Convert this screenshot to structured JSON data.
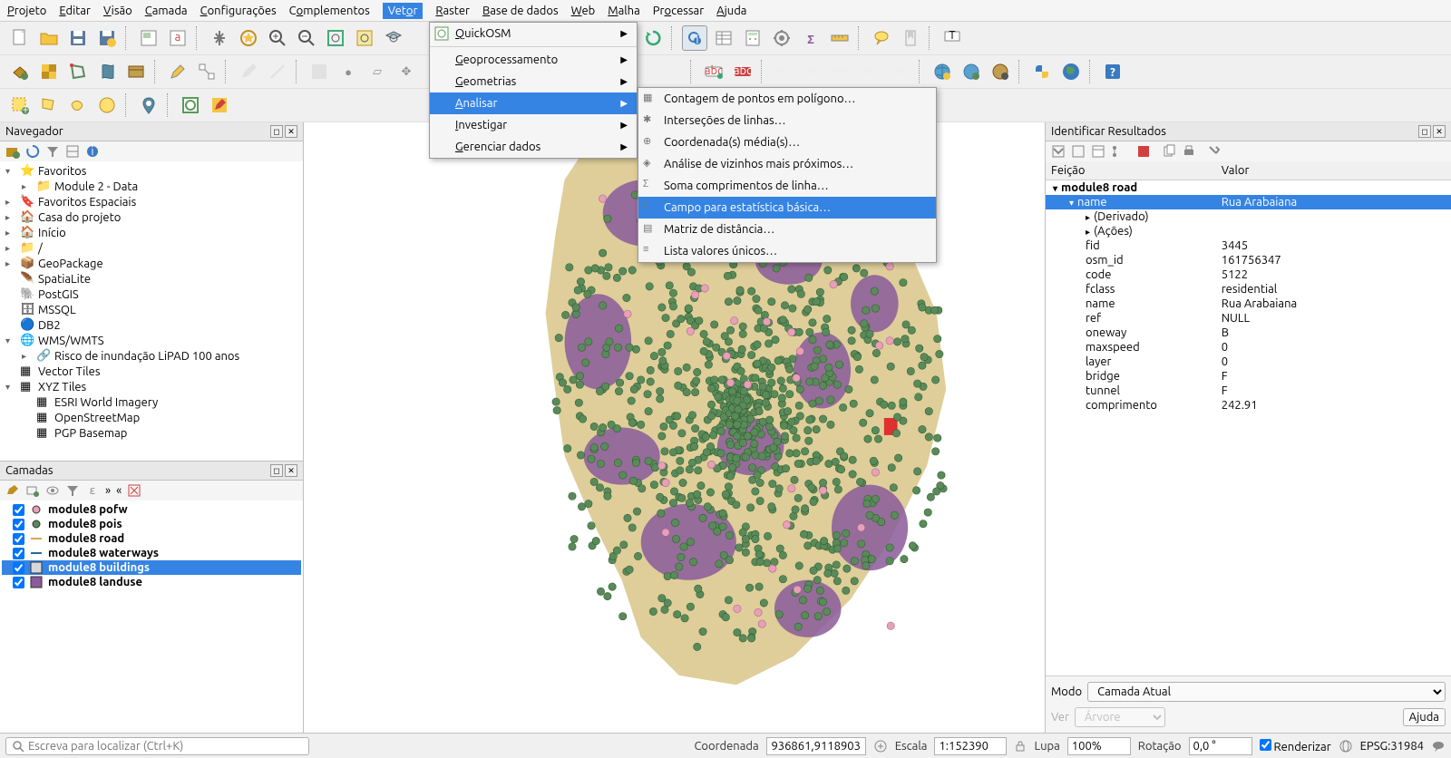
{
  "menubar": [
    "Projeto",
    "Editar",
    "Visão",
    "Camada",
    "Configurações",
    "Complementos",
    "Vetor",
    "Raster",
    "Base de dados",
    "Web",
    "Malha",
    "Processar",
    "Ajuda"
  ],
  "menubar_active_index": 6,
  "vetor_menu": {
    "items": [
      {
        "label": "QuickOSM",
        "arrow": true
      },
      {
        "label": "Geoprocessamento",
        "arrow": true
      },
      {
        "label": "Geometrias",
        "arrow": true
      },
      {
        "label": "Analisar",
        "arrow": true,
        "highlighted": true
      },
      {
        "label": "Investigar",
        "arrow": true
      },
      {
        "label": "Gerenciar dados",
        "arrow": true
      }
    ]
  },
  "analisar_submenu": {
    "items": [
      {
        "label": "Contagem de pontos em polígono…"
      },
      {
        "label": "Interseções de linhas…"
      },
      {
        "label": "Coordenada(s) média(s)…"
      },
      {
        "label": "Análise de vizinhos mais próximos…"
      },
      {
        "label": "Soma comprimentos de linha…"
      },
      {
        "label": "Campo para estatística básica…",
        "highlighted": true
      },
      {
        "label": "Matriz de distância…"
      },
      {
        "label": "Lista valores únicos…"
      }
    ]
  },
  "browser": {
    "title": "Navegador",
    "items": [
      {
        "label": "Favoritos",
        "indent": 0,
        "arrow": "▾",
        "icon": "star"
      },
      {
        "label": "Module 2 - Data",
        "indent": 1,
        "arrow": "▸",
        "icon": "folder"
      },
      {
        "label": "Favoritos Espaciais",
        "indent": 0,
        "arrow": "▸",
        "icon": "bookmark"
      },
      {
        "label": "Casa do projeto",
        "indent": 0,
        "arrow": "▸",
        "icon": "home"
      },
      {
        "label": "Início",
        "indent": 0,
        "arrow": "▸",
        "icon": "home2"
      },
      {
        "label": "/",
        "indent": 0,
        "arrow": "▸",
        "icon": "folder"
      },
      {
        "label": "GeoPackage",
        "indent": 0,
        "arrow": "▸",
        "icon": "gpkg"
      },
      {
        "label": "SpatiaLite",
        "indent": 0,
        "arrow": "",
        "icon": "feather"
      },
      {
        "label": "PostGIS",
        "indent": 0,
        "arrow": "",
        "icon": "pg"
      },
      {
        "label": "MSSQL",
        "indent": 0,
        "arrow": "",
        "icon": "mssql"
      },
      {
        "label": "DB2",
        "indent": 0,
        "arrow": "",
        "icon": "db2"
      },
      {
        "label": "WMS/WMTS",
        "indent": 0,
        "arrow": "▾",
        "icon": "globe"
      },
      {
        "label": "Risco de inundação LiPAD 100 anos",
        "indent": 1,
        "arrow": "▸",
        "icon": "wms"
      },
      {
        "label": "Vector Tiles",
        "indent": 0,
        "arrow": "",
        "icon": "vtiles"
      },
      {
        "label": "XYZ Tiles",
        "indent": 0,
        "arrow": "▾",
        "icon": "xyz"
      },
      {
        "label": "ESRI World Imagery",
        "indent": 1,
        "arrow": "",
        "icon": "grid"
      },
      {
        "label": "OpenStreetMap",
        "indent": 1,
        "arrow": "",
        "icon": "grid"
      },
      {
        "label": "PGP Basemap",
        "indent": 1,
        "arrow": "",
        "icon": "grid"
      }
    ]
  },
  "layers": {
    "title": "Camadas",
    "items": [
      {
        "checked": true,
        "label": "module8 pofw",
        "swatch_type": "point",
        "swatch_color": "#e8a0b8",
        "bold": true
      },
      {
        "checked": true,
        "label": "module8 pois",
        "swatch_type": "point",
        "swatch_color": "#5a8a5a",
        "bold": true
      },
      {
        "checked": true,
        "label": "module8 road",
        "swatch_type": "line",
        "swatch_color": "#d4a84a",
        "bold": true
      },
      {
        "checked": true,
        "label": "module8 waterways",
        "swatch_type": "line",
        "swatch_color": "#2a6aa0",
        "bold": true
      },
      {
        "checked": true,
        "label": "module8 buildings",
        "swatch_type": "fill",
        "swatch_color": "#d8d8d8",
        "bold": true,
        "selected": true
      },
      {
        "checked": true,
        "label": "module8 landuse",
        "swatch_type": "fill",
        "swatch_color": "#8a5a9a",
        "bold": true
      }
    ]
  },
  "identify": {
    "title": "Identificar Resultados",
    "col1": "Feição",
    "col2": "Valor",
    "rows": [
      {
        "k": "module8 road",
        "v": "",
        "indent": 0,
        "arrow": "▾",
        "bold": true
      },
      {
        "k": "name",
        "v": "Rua Arabaiana",
        "indent": 1,
        "arrow": "▾",
        "selected": true
      },
      {
        "k": "(Derivado)",
        "v": "",
        "indent": 2,
        "arrow": "▸"
      },
      {
        "k": "(Ações)",
        "v": "",
        "indent": 2,
        "arrow": "▸"
      },
      {
        "k": "fid",
        "v": "3445",
        "indent": 2
      },
      {
        "k": "osm_id",
        "v": "161756347",
        "indent": 2
      },
      {
        "k": "code",
        "v": "5122",
        "indent": 2
      },
      {
        "k": "fclass",
        "v": "residential",
        "indent": 2
      },
      {
        "k": "name",
        "v": "Rua Arabaiana",
        "indent": 2
      },
      {
        "k": "ref",
        "v": "NULL",
        "indent": 2
      },
      {
        "k": "oneway",
        "v": "B",
        "indent": 2
      },
      {
        "k": "maxspeed",
        "v": "0",
        "indent": 2
      },
      {
        "k": "layer",
        "v": "0",
        "indent": 2
      },
      {
        "k": "bridge",
        "v": "F",
        "indent": 2
      },
      {
        "k": "tunnel",
        "v": "F",
        "indent": 2
      },
      {
        "k": "comprimento",
        "v": "242.91",
        "indent": 2
      }
    ],
    "modo_label": "Modo",
    "modo_value": "Camada Atual",
    "ver_label": "Ver",
    "ver_value": "Árvore",
    "ajuda": "Ajuda"
  },
  "statusbar": {
    "locator_placeholder": "Escreva para localizar (Ctrl+K)",
    "coord_label": "Coordenada",
    "coord_value": "936861,9118903",
    "escala_label": "Escala",
    "escala_value": "1:152390",
    "lupa_label": "Lupa",
    "lupa_value": "100%",
    "rot_label": "Rotação",
    "rot_value": "0,0 °",
    "render_label": "Renderizar",
    "epsg": "EPSG:31984"
  },
  "map_colors": {
    "landuse": "#8a5a9a",
    "roads": "#c9ad55",
    "pois": "#5a8a5a",
    "pofw": "#e8a0b8",
    "highlight": "#e03030",
    "bg": "#ffffff"
  }
}
